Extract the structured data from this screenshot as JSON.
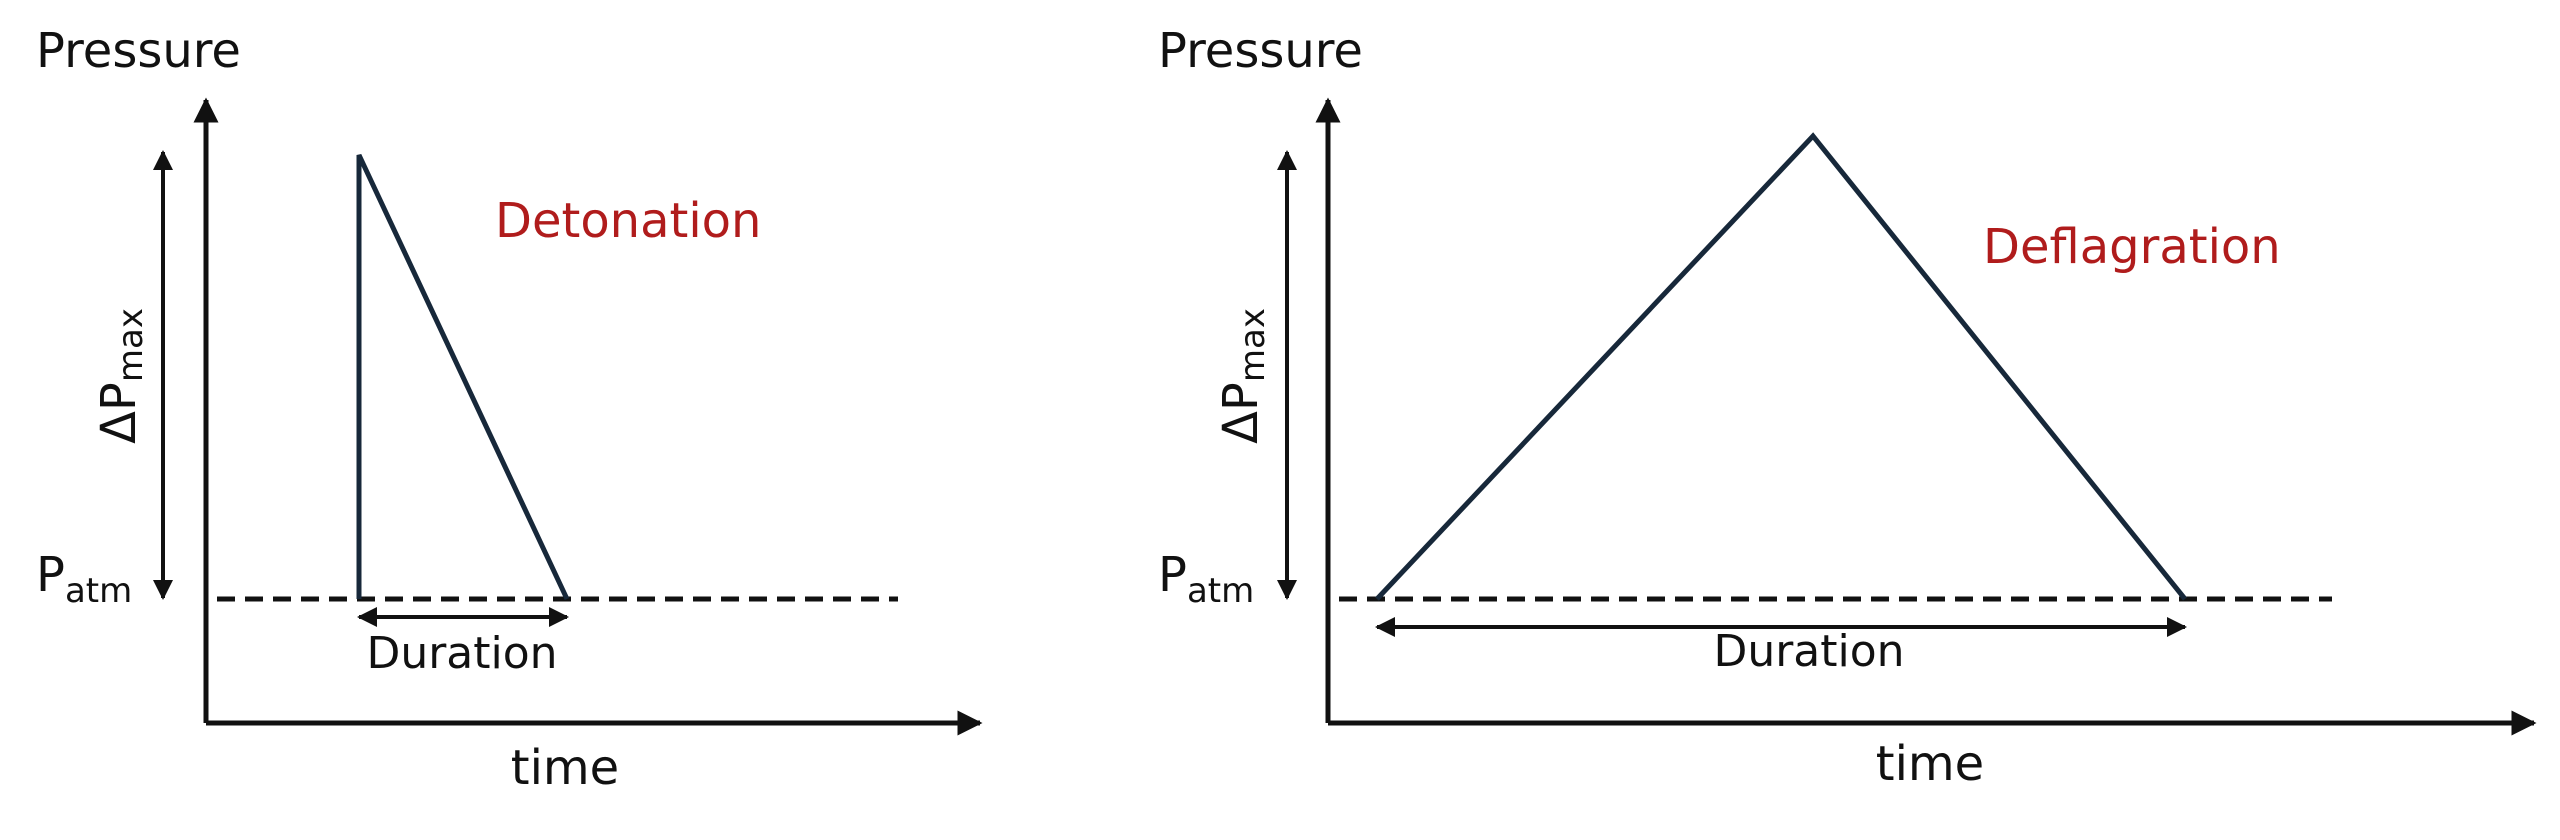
{
  "panels": [
    {
      "y_axis_label": "Pressure",
      "delta_label": "ΔP",
      "delta_subscript": "max",
      "baseline_label": "P",
      "baseline_subscript": "atm",
      "curve_label": "Detonation",
      "duration_label": "Duration",
      "x_axis_label": "time"
    },
    {
      "y_axis_label": "Pressure",
      "delta_label": "ΔP",
      "delta_subscript": "max",
      "baseline_label": "P",
      "baseline_subscript": "atm",
      "curve_label": "Deflagration",
      "duration_label": "Duration",
      "x_axis_label": "time"
    }
  ]
}
